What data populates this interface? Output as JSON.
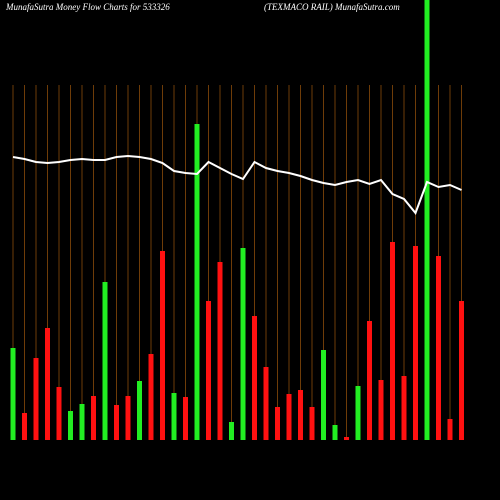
{
  "chart_data": {
    "type": "bar",
    "title": "MunafaSutra  Money Flow  Charts for 533326",
    "subtitle": "(TEXMACO RAIL) MunafaSutra.com",
    "ylim": [
      0,
      440
    ],
    "grid": true,
    "grid_color": "#b8650f",
    "series": [
      {
        "type": "bar",
        "values": [
          92,
          27,
          82,
          112,
          53,
          29,
          36,
          44,
          158,
          35,
          44,
          59,
          86,
          189,
          47,
          43,
          316,
          139,
          178,
          18,
          192,
          124,
          73,
          33,
          46,
          50,
          33,
          90,
          15,
          3,
          54,
          119,
          60,
          198,
          64,
          194,
          440,
          184,
          21,
          139
        ],
        "colors": [
          "#22ee22",
          "#ff1111",
          "#ff1111",
          "#ff1111",
          "#ff1111",
          "#22ee22",
          "#22ee22",
          "#ff1111",
          "#22ee22",
          "#ff1111",
          "#ff1111",
          "#22ee22",
          "#ff1111",
          "#ff1111",
          "#22ee22",
          "#ff1111",
          "#22ee22",
          "#ff1111",
          "#ff1111",
          "#22ee22",
          "#22ee22",
          "#ff1111",
          "#ff1111",
          "#ff1111",
          "#ff1111",
          "#ff1111",
          "#ff1111",
          "#22ee22",
          "#22ee22",
          "#ff1111",
          "#22ee22",
          "#ff1111",
          "#ff1111",
          "#ff1111",
          "#ff1111",
          "#ff1111",
          "#22ee22",
          "#ff1111",
          "#ff1111",
          "#ff1111"
        ]
      },
      {
        "type": "line",
        "color": "#ffffff",
        "values": [
          283,
          281,
          278,
          277,
          278,
          280,
          281,
          280,
          280,
          283,
          284,
          283,
          281,
          277,
          269,
          267,
          266,
          278,
          272,
          266,
          261,
          278,
          272,
          269,
          267,
          264,
          260,
          257,
          255,
          258,
          260,
          256,
          260,
          246,
          241,
          227,
          258,
          253,
          255,
          250
        ]
      }
    ]
  }
}
